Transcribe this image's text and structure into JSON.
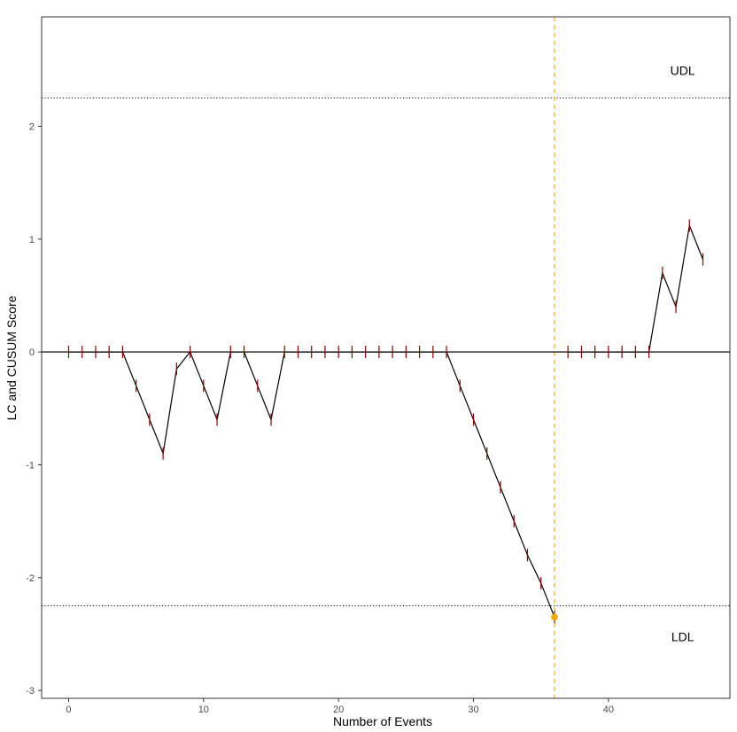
{
  "chart_data": {
    "type": "line",
    "xlabel": "Number of Events",
    "ylabel": "LC and CUSUM Score",
    "xlim": [
      -2,
      49
    ],
    "ylim": [
      -3.07,
      2.97
    ],
    "x_ticks": [
      0,
      10,
      20,
      30,
      40
    ],
    "y_ticks": [
      -3,
      -2,
      -1,
      0,
      1,
      2
    ],
    "grid": false,
    "colors": {
      "line": "#000000",
      "dlc_ticks": "#8b0000",
      "signal": "#ffa500",
      "limits": "#000000"
    },
    "cusum": {
      "x": [
        0,
        1,
        2,
        3,
        4,
        5,
        6,
        7,
        8,
        9,
        10,
        11,
        12,
        13,
        14,
        15,
        16,
        17,
        18,
        19,
        20,
        21,
        22,
        23,
        24,
        25,
        26,
        27,
        28,
        29,
        30,
        31,
        32,
        33,
        34,
        35,
        36,
        37,
        38,
        39,
        40,
        41,
        42,
        43,
        44,
        45,
        46,
        47
      ],
      "y": [
        0,
        0,
        0,
        0,
        0,
        -0.3,
        -0.6,
        -0.9,
        -0.15,
        0,
        -0.3,
        -0.6,
        0,
        0,
        -0.3,
        -0.6,
        0,
        0,
        0,
        0,
        0,
        0,
        0,
        0,
        0,
        0,
        0,
        0,
        0,
        -0.3,
        -0.6,
        -0.9,
        -1.2,
        -1.5,
        -1.8,
        -2.05,
        -2.35,
        0,
        0,
        0,
        0,
        0,
        0,
        0,
        0.7,
        0.4,
        1.12,
        0.82
      ]
    },
    "segment_breaks_after_x": [
      36
    ],
    "control_limits": [
      {
        "label": "UDL",
        "value": 2.25
      },
      {
        "label": "LDL",
        "value": -2.25
      }
    ],
    "signal": {
      "x": 36,
      "y": -2.35
    }
  }
}
